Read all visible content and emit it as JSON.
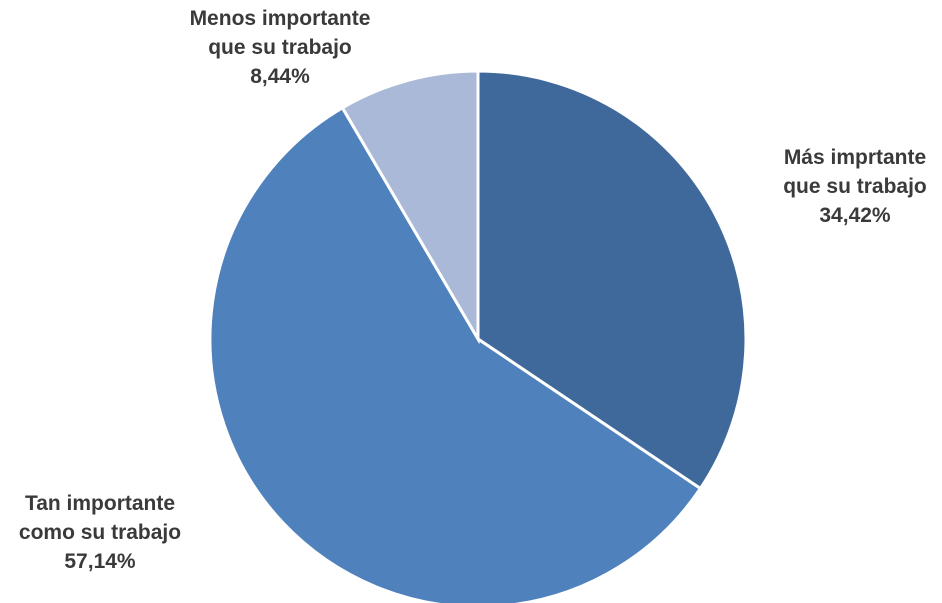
{
  "chart_data": {
    "type": "pie",
    "title": "",
    "start_angle_deg": 0,
    "direction": "clockwise",
    "slices": [
      {
        "label_lines": [
          "Más imprtante",
          "que su trabajo"
        ],
        "value": 34.42,
        "value_label": "34,42%",
        "color": "#40699B"
      },
      {
        "label_lines": [
          "Tan importante",
          "como su trabajo"
        ],
        "value": 57.14,
        "value_label": "57,14%",
        "color": "#4F81BD"
      },
      {
        "label_lines": [
          "Menos importante",
          "que su trabajo"
        ],
        "value": 8.44,
        "value_label": "8,44%",
        "color": "#AAB9D8"
      }
    ]
  }
}
